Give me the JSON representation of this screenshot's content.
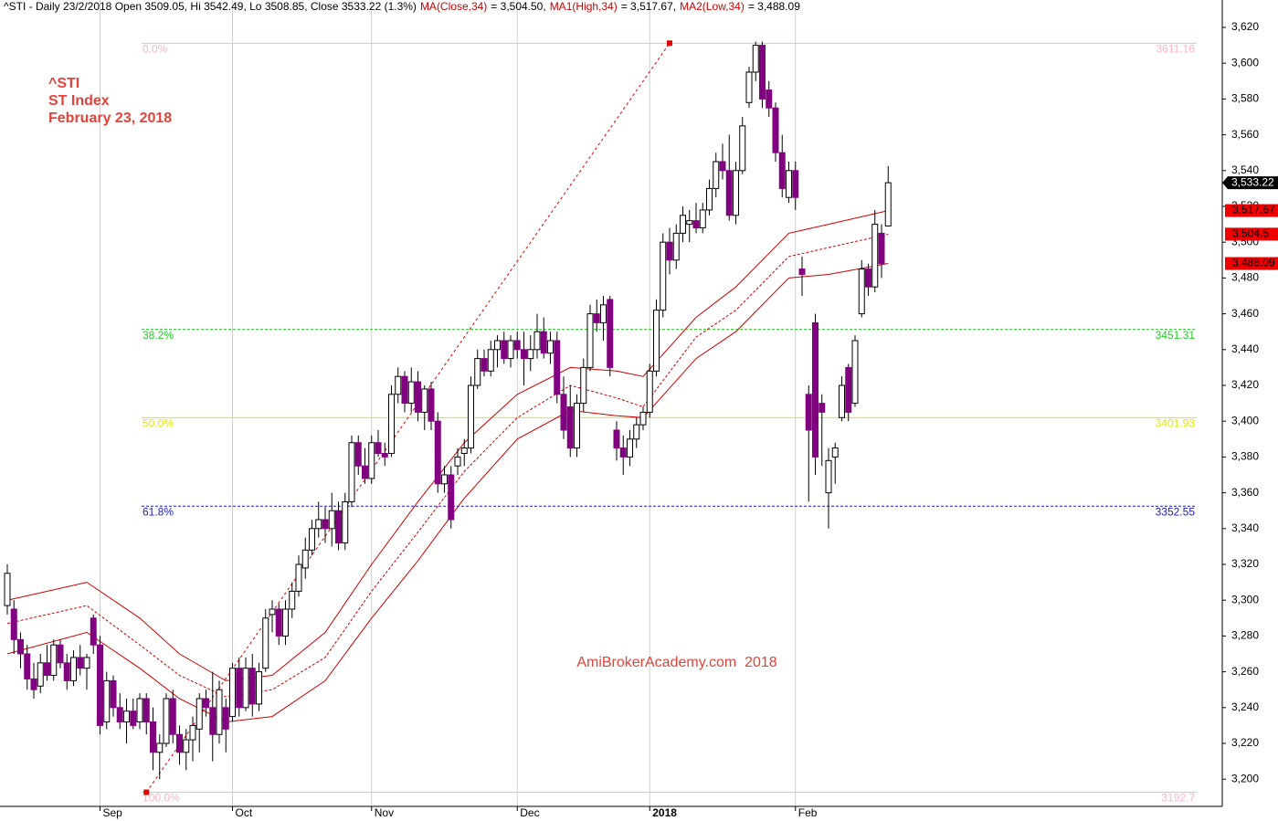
{
  "chart_data": {
    "type": "candlestick",
    "header": [
      {
        "text": "^STI - Daily 23/2/2018 Open 3509.05, Hi 3542.49, Lo 3508.85, Close 3533.22 (1.3%)",
        "color": "#000000"
      },
      {
        "text": "MA(Close,34)",
        "color": "#cc0000"
      },
      {
        "text": "= 3,504.50,",
        "color": "#000000"
      },
      {
        "text": "MA1(High,34)",
        "color": "#cc0000"
      },
      {
        "text": "= 3,517.67,",
        "color": "#000000"
      },
      {
        "text": "MA2(Low,34)",
        "color": "#cc0000"
      },
      {
        "text": "= 3,488.09",
        "color": "#000000"
      }
    ],
    "annotations": [
      "^STI",
      "ST Index",
      "February 23, 2018"
    ],
    "watermark": "AmiBrokerAcademy.com  2018",
    "up_color": "#ffffff",
    "down_color": "#800080",
    "categories": [
      null,
      null,
      null,
      null,
      null,
      null,
      null,
      null,
      null,
      null,
      null,
      null,
      null,
      null,
      "Sep",
      null,
      null,
      null,
      null,
      null,
      null,
      null,
      null,
      null,
      null,
      null,
      null,
      null,
      null,
      null,
      null,
      null,
      null,
      null,
      "Oct",
      null,
      null,
      null,
      null,
      null,
      null,
      null,
      null,
      null,
      null,
      null,
      null,
      null,
      null,
      null,
      null,
      null,
      null,
      null,
      null,
      "Nov",
      null,
      null,
      null,
      null,
      null,
      null,
      null,
      null,
      null,
      null,
      null,
      null,
      null,
      null,
      null,
      null,
      null,
      null,
      null,
      null,
      null,
      "Dec",
      null,
      null,
      null,
      null,
      null,
      null,
      null,
      null,
      null,
      null,
      null,
      null,
      null,
      null,
      null,
      null,
      null,
      null,
      null,
      "2018",
      null,
      null,
      null,
      null,
      null,
      null,
      null,
      null,
      null,
      null,
      null,
      null,
      null,
      null,
      null,
      null,
      null,
      null,
      null,
      null,
      null,
      "Feb",
      null,
      null,
      null,
      null,
      null,
      null,
      null,
      null,
      null,
      null,
      null,
      null,
      null,
      null
    ],
    "open": [
      3297,
      3295,
      3278,
      3270,
      3256,
      3252,
      3265,
      3258,
      3275,
      3265,
      3255,
      3268,
      3262,
      3290,
      3275,
      3232,
      3255,
      3240,
      3232,
      3238,
      3232,
      3245,
      3232,
      3215,
      3220,
      3245,
      3225,
      3215,
      3222,
      3228,
      3245,
      3240,
      3225,
      3240,
      3235,
      3262,
      3240,
      3262,
      3242,
      3262,
      3292,
      3295,
      3280,
      3295,
      3305,
      3318,
      3328,
      3340,
      3345,
      3340,
      3350,
      3332,
      3355,
      3388,
      3375,
      3368,
      3388,
      3382,
      3382,
      3415,
      3425,
      3410,
      3422,
      3405,
      3418,
      3400,
      3365,
      3370,
      3375,
      3382,
      3385,
      3420,
      3435,
      3428,
      3440,
      3445,
      3435,
      3445,
      3440,
      3435,
      3440,
      3450,
      3438,
      3445,
      3415,
      3408,
      3385,
      3410,
      3430,
      3460,
      3455,
      3468,
      3395,
      3385,
      3380,
      3390,
      3398,
      3405,
      3428,
      3462,
      3500,
      3490,
      3505,
      3510,
      3512,
      3508,
      3518,
      3530,
      3545,
      3540,
      3515,
      3540,
      3578,
      3595,
      3610,
      3585,
      3575,
      3550,
      3525,
      3540,
      3485,
      3415,
      3455,
      3410,
      3360,
      3380,
      3402,
      3430,
      3410,
      3460,
      3485,
      3475,
      3505,
      3509.05
    ],
    "high": [
      3320,
      3300,
      3282,
      3275,
      3265,
      3270,
      3275,
      3278,
      3278,
      3270,
      3272,
      3275,
      3270,
      3292,
      3280,
      3260,
      3258,
      3248,
      3245,
      3245,
      3248,
      3248,
      3240,
      3225,
      3248,
      3250,
      3230,
      3228,
      3235,
      3248,
      3250,
      3260,
      3255,
      3245,
      3265,
      3268,
      3268,
      3270,
      3265,
      3295,
      3300,
      3298,
      3300,
      3310,
      3325,
      3335,
      3345,
      3355,
      3352,
      3360,
      3355,
      3360,
      3392,
      3392,
      3385,
      3392,
      3395,
      3388,
      3420,
      3430,
      3428,
      3430,
      3428,
      3420,
      3422,
      3405,
      3375,
      3375,
      3385,
      3390,
      3425,
      3440,
      3440,
      3445,
      3448,
      3450,
      3448,
      3450,
      3450,
      3448,
      3460,
      3458,
      3450,
      3450,
      3425,
      3420,
      3415,
      3435,
      3465,
      3468,
      3470,
      3470,
      3400,
      3392,
      3395,
      3402,
      3408,
      3432,
      3468,
      3505,
      3508,
      3510,
      3520,
      3518,
      3522,
      3522,
      3535,
      3550,
      3555,
      3560,
      3545,
      3570,
      3598,
      3612,
      3612,
      3590,
      3578,
      3560,
      3545,
      3545,
      3492,
      3420,
      3460,
      3415,
      3385,
      3388,
      3425,
      3432,
      3448,
      3490,
      3488,
      3518,
      3510,
      3542.49
    ],
    "low": [
      3292,
      3270,
      3262,
      3250,
      3245,
      3248,
      3255,
      3255,
      3262,
      3250,
      3252,
      3258,
      3250,
      3270,
      3225,
      3228,
      3235,
      3228,
      3220,
      3228,
      3228,
      3225,
      3205,
      3200,
      3218,
      3220,
      3208,
      3205,
      3210,
      3215,
      3235,
      3210,
      3220,
      3215,
      3232,
      3235,
      3238,
      3235,
      3238,
      3260,
      3282,
      3275,
      3275,
      3290,
      3302,
      3312,
      3325,
      3335,
      3332,
      3330,
      3328,
      3328,
      3352,
      3370,
      3365,
      3365,
      3380,
      3375,
      3380,
      3410,
      3405,
      3405,
      3400,
      3395,
      3395,
      3360,
      3360,
      3340,
      3370,
      3375,
      3382,
      3418,
      3425,
      3425,
      3430,
      3432,
      3430,
      3435,
      3420,
      3428,
      3435,
      3435,
      3432,
      3410,
      3390,
      3380,
      3380,
      3405,
      3428,
      3450,
      3445,
      3425,
      3378,
      3370,
      3375,
      3385,
      3395,
      3402,
      3425,
      3458,
      3482,
      3485,
      3500,
      3500,
      3505,
      3505,
      3515,
      3525,
      3535,
      3512,
      3510,
      3538,
      3575,
      3590,
      3575,
      3570,
      3545,
      3525,
      3522,
      3518,
      3470,
      3355,
      3370,
      3375,
      3340,
      3365,
      3400,
      3400,
      3408,
      3458,
      3470,
      3472,
      3480,
      3508.85
    ],
    "close": [
      3315,
      3278,
      3270,
      3256,
      3250,
      3265,
      3258,
      3275,
      3265,
      3255,
      3268,
      3262,
      3268,
      3275,
      3230,
      3255,
      3240,
      3232,
      3238,
      3230,
      3245,
      3232,
      3215,
      3220,
      3245,
      3225,
      3215,
      3222,
      3230,
      3245,
      3240,
      3225,
      3250,
      3228,
      3262,
      3240,
      3262,
      3242,
      3260,
      3290,
      3295,
      3280,
      3295,
      3305,
      3320,
      3328,
      3340,
      3345,
      3340,
      3350,
      3332,
      3355,
      3388,
      3375,
      3368,
      3388,
      3382,
      3380,
      3415,
      3425,
      3410,
      3422,
      3405,
      3418,
      3400,
      3365,
      3370,
      3345,
      3380,
      3385,
      3420,
      3435,
      3428,
      3440,
      3445,
      3435,
      3445,
      3440,
      3435,
      3440,
      3450,
      3438,
      3445,
      3415,
      3395,
      3385,
      3410,
      3430,
      3460,
      3455,
      3465,
      3430,
      3385,
      3380,
      3390,
      3398,
      3405,
      3428,
      3462,
      3500,
      3490,
      3505,
      3515,
      3512,
      3508,
      3518,
      3530,
      3545,
      3540,
      3515,
      3540,
      3565,
      3595,
      3610,
      3580,
      3575,
      3550,
      3530,
      3540,
      3525,
      3482,
      3395,
      3380,
      3405,
      3378,
      3385,
      3420,
      3405,
      3445,
      3485,
      3475,
      3510,
      3488,
      3533.22
    ],
    "close_label": "3,533.22",
    "series": [
      {
        "color": "#cc0000",
        "dashed": false,
        "x": [
          0,
          12,
          20,
          26,
          33,
          40,
          48,
          55,
          62,
          69,
          77,
          85,
          92,
          96,
          104,
          110,
          118,
          124,
          133
        ],
        "values": [
          3300,
          3310,
          3290,
          3270,
          3255,
          3258,
          3282,
          3320,
          3355,
          3388,
          3415,
          3430,
          3428,
          3425,
          3458,
          3475,
          3505,
          3510,
          3517.67
        ],
        "last_label": "3,517.67"
      },
      {
        "color": "#cc0000",
        "dashed": true,
        "x": [
          0,
          12,
          20,
          26,
          33,
          40,
          48,
          55,
          62,
          69,
          77,
          85,
          92,
          96,
          104,
          110,
          118,
          124,
          133
        ],
        "values": [
          3287,
          3297,
          3275,
          3258,
          3246,
          3250,
          3268,
          3305,
          3338,
          3372,
          3402,
          3420,
          3413,
          3408,
          3447,
          3462,
          3492,
          3497,
          3504.5
        ],
        "last_label": "3,504.5"
      },
      {
        "color": "#cc0000",
        "dashed": false,
        "x": [
          0,
          12,
          20,
          26,
          33,
          40,
          48,
          55,
          62,
          69,
          77,
          85,
          92,
          96,
          104,
          110,
          118,
          124,
          133
        ],
        "values": [
          3270,
          3282,
          3262,
          3245,
          3232,
          3235,
          3255,
          3290,
          3322,
          3357,
          3390,
          3406,
          3403,
          3402,
          3435,
          3450,
          3480,
          3482,
          3488.09
        ],
        "last_label": "3,488.09"
      }
    ],
    "fib_levels": [
      {
        "pct": "0.0%",
        "value": 3611.16,
        "color": "#f4b6c8"
      },
      {
        "pct": "38.2%",
        "value": 3451.31,
        "color": "#22cc22"
      },
      {
        "pct": "50.0%",
        "value": 3401.93,
        "color": "#e6e600"
      },
      {
        "pct": "61.8%",
        "value": 3352.55,
        "color": "#1a1acc"
      },
      {
        "pct": "100.0%",
        "value": 3192.7,
        "color": "#f4b6c8"
      }
    ],
    "fib_trend_x": [
      21,
      100
    ],
    "ylim": [
      3184.8,
      3635.3
    ],
    "yticks": [
      {
        "value": 3200,
        "label": "3,200"
      },
      {
        "value": 3220,
        "label": "3,220"
      },
      {
        "value": 3240,
        "label": "3,240"
      },
      {
        "value": 3260,
        "label": "3,260"
      },
      {
        "value": 3280,
        "label": "3,280"
      },
      {
        "value": 3300,
        "label": "3,300"
      },
      {
        "value": 3320,
        "label": "3,320"
      },
      {
        "value": 3340,
        "label": "3,340"
      },
      {
        "value": 3360,
        "label": "3,360"
      },
      {
        "value": 3380,
        "label": "3,380"
      },
      {
        "value": 3400,
        "label": "3,400"
      },
      {
        "value": 3420,
        "label": "3,420"
      },
      {
        "value": 3440,
        "label": "3,440"
      },
      {
        "value": 3460,
        "label": "3,460"
      },
      {
        "value": 3480,
        "label": "3,480"
      },
      {
        "value": 3500,
        "label": "3,500"
      },
      {
        "value": 3520,
        "label": "3,520"
      },
      {
        "value": 3540,
        "label": "3,540"
      },
      {
        "value": 3560,
        "label": "3,560"
      },
      {
        "value": 3580,
        "label": "3,580"
      },
      {
        "value": 3600,
        "label": "3,600"
      },
      {
        "value": 3620,
        "label": "3,620"
      }
    ]
  }
}
